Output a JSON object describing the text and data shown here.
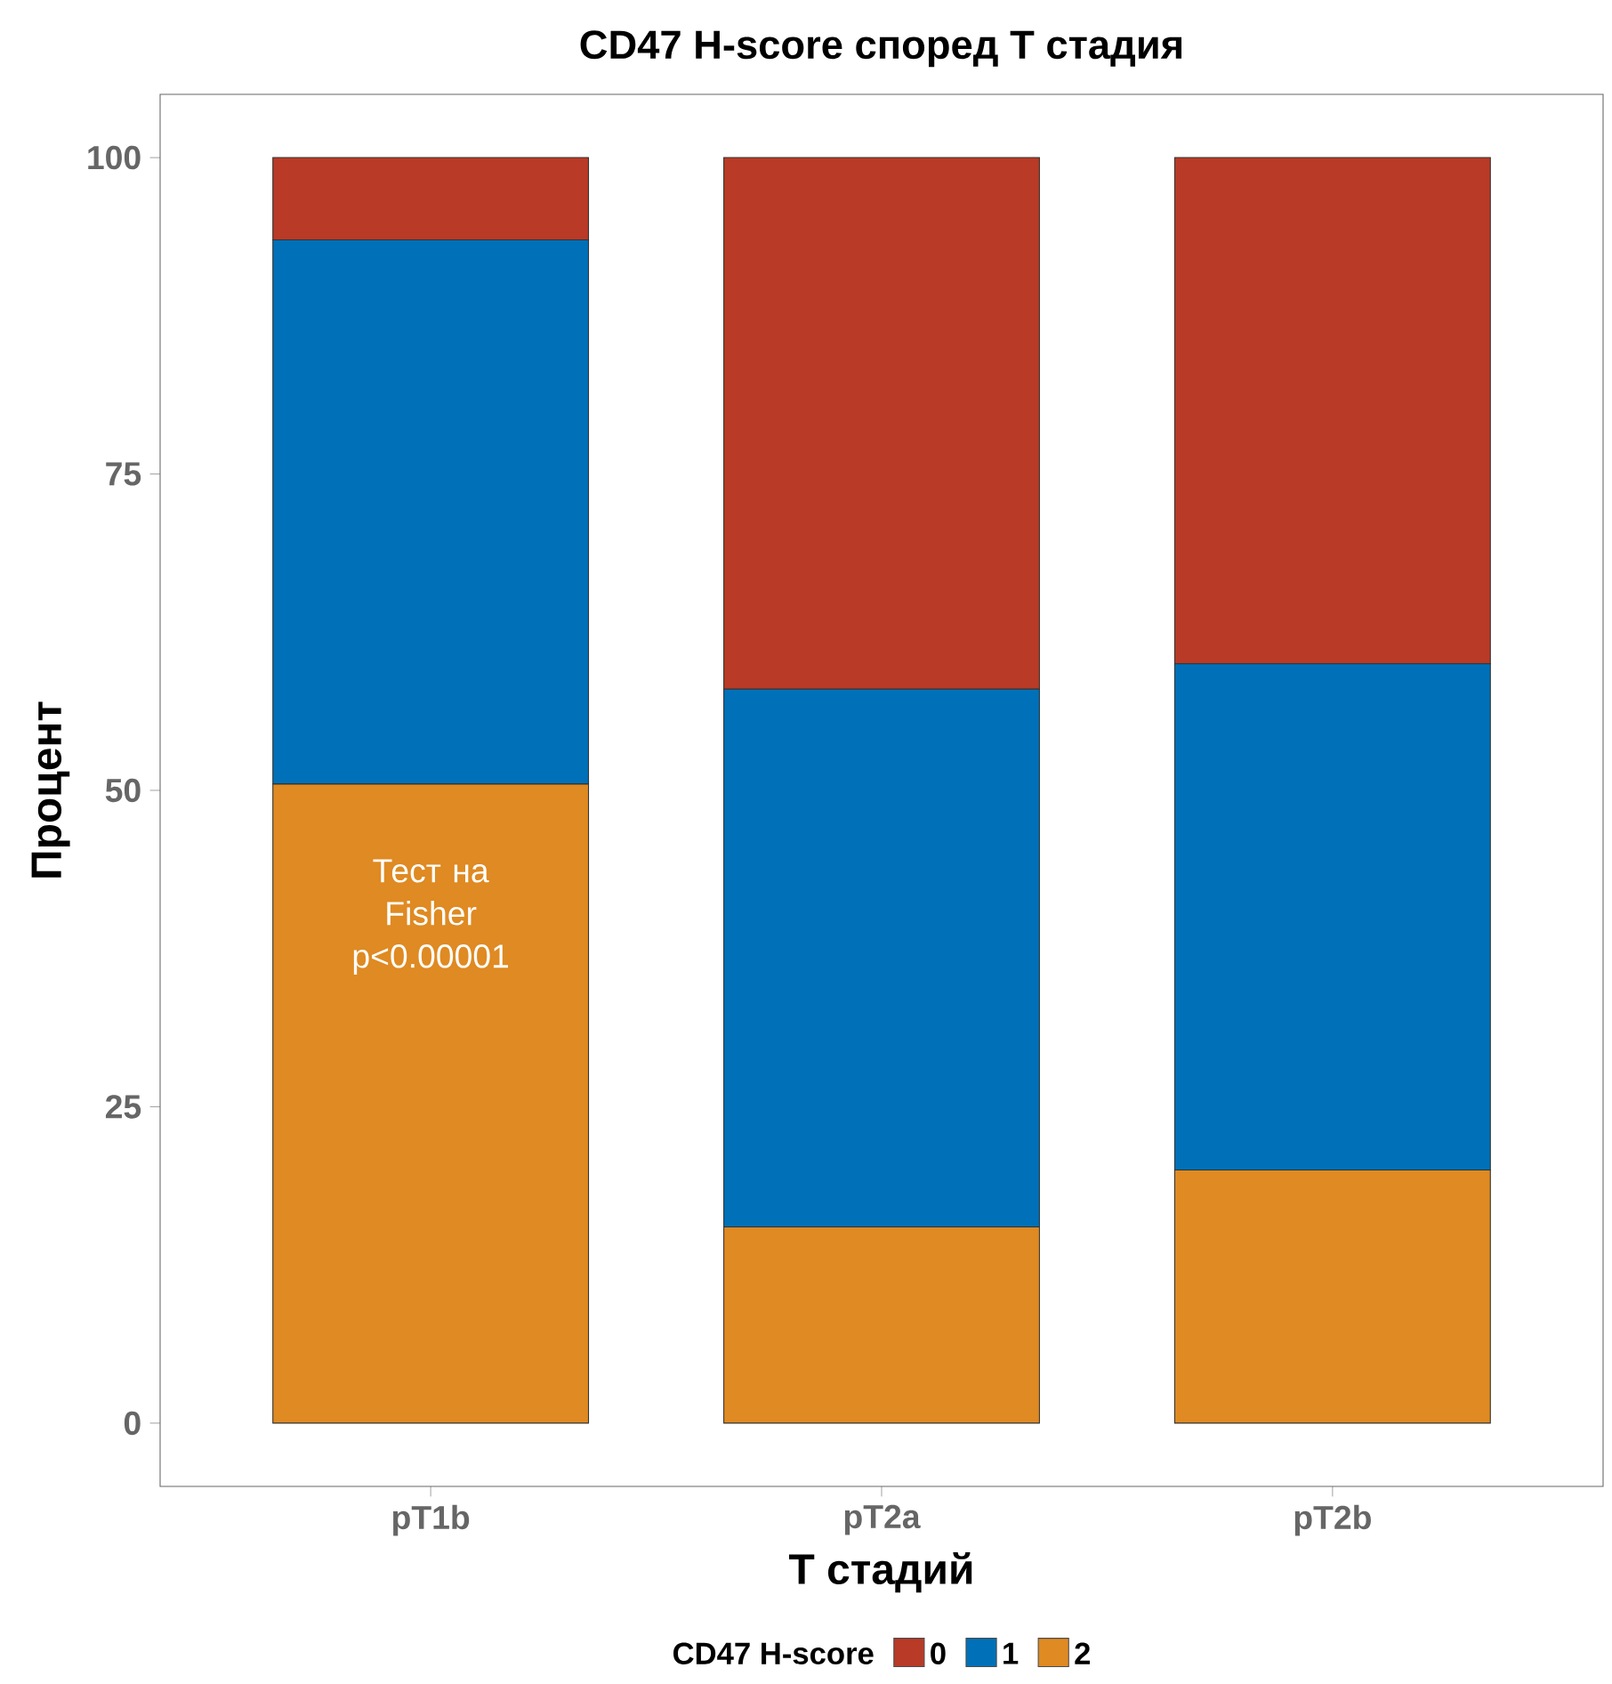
{
  "chart_data": {
    "type": "bar",
    "title": "CD47 H-score според T стадия",
    "xlabel": "T стадий",
    "ylabel": "Процент",
    "categories": [
      "pT1b",
      "pT2a",
      "pT2b"
    ],
    "stacked": true,
    "legend_title": "CD47 H-score",
    "legend": "bottom",
    "grid": false,
    "series": [
      {
        "name": "2",
        "color": "#df8a22",
        "values": [
          50.5,
          15.5,
          20
        ]
      },
      {
        "name": "1",
        "color": "#0071b8",
        "values": [
          43,
          42.5,
          40
        ]
      },
      {
        "name": "0",
        "color": "#b93a26",
        "values": [
          6.5,
          42,
          40
        ]
      }
    ],
    "ylim": [
      -5,
      105
    ],
    "yticks": [
      0,
      25,
      50,
      75,
      100
    ],
    "annotations": [
      "Тест на Fisher p<0.00001"
    ]
  }
}
